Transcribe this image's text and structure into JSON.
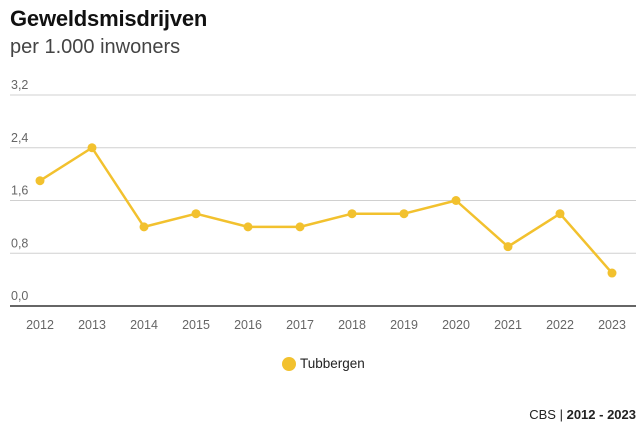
{
  "header": {
    "title": "Geweldsmisdrijven",
    "subtitle": "per 1.000 inwoners"
  },
  "footer": {
    "source": "CBS",
    "separator": "|",
    "period": "2012 - 2023"
  },
  "colors": {
    "series": "#f2c12e",
    "grid": "#d0d0d0",
    "axis": "#333333"
  },
  "chart_data": {
    "type": "line",
    "title": "Geweldsmisdrijven",
    "subtitle": "per 1.000 inwoners",
    "x": [
      "2012",
      "2013",
      "2014",
      "2015",
      "2016",
      "2017",
      "2018",
      "2019",
      "2020",
      "2021",
      "2022",
      "2023"
    ],
    "series": [
      {
        "name": "Tubbergen",
        "values": [
          1.9,
          2.4,
          1.2,
          1.4,
          1.2,
          1.2,
          1.4,
          1.4,
          1.6,
          0.9,
          1.4,
          0.5
        ]
      }
    ],
    "ylim": [
      0,
      3.2
    ],
    "yticks": [
      "0,0",
      "0,8",
      "1,6",
      "2,4",
      "3,2"
    ],
    "ytick_values": [
      0,
      0.8,
      1.6,
      2.4,
      3.2
    ],
    "grid": true,
    "legend": "bottom-center"
  }
}
